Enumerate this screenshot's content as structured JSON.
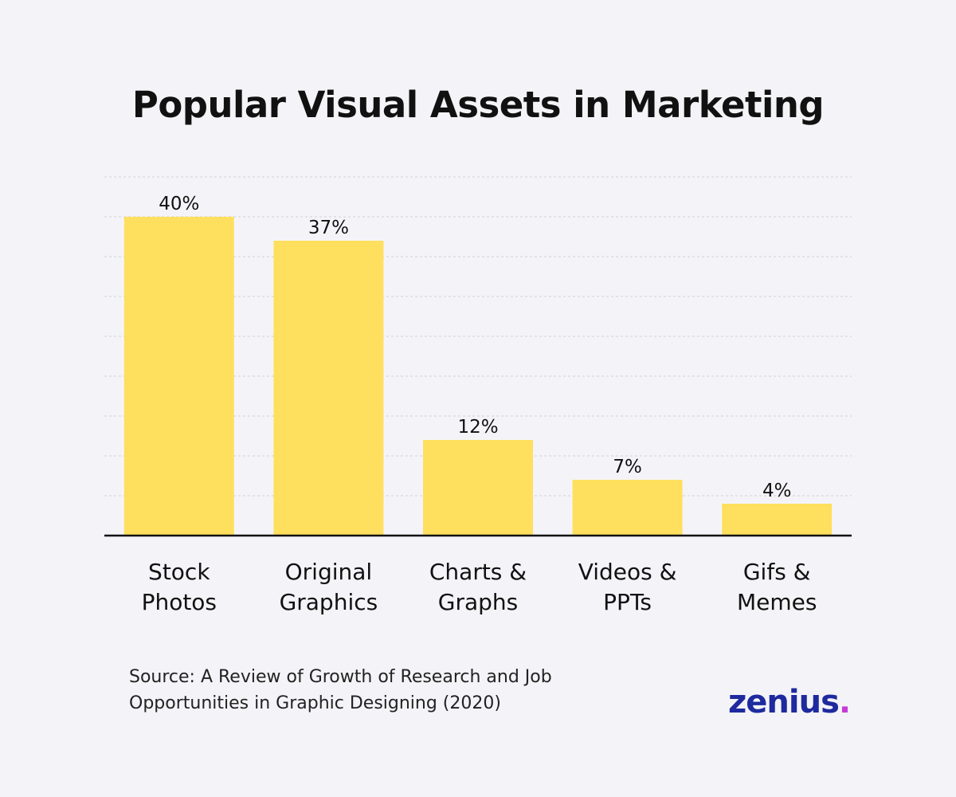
{
  "chart_data": {
    "type": "bar",
    "title": "Popular Visual Assets in Marketing",
    "categories": [
      [
        "Stock",
        "Photos"
      ],
      [
        "Original",
        "Graphics"
      ],
      [
        "Charts &",
        "Graphs"
      ],
      [
        "Videos &",
        "PPTs"
      ],
      [
        "Gifs &",
        "Memes"
      ]
    ],
    "values": [
      40,
      37,
      12,
      7,
      4
    ],
    "value_labels": [
      "40%",
      "37%",
      "12%",
      "7%",
      "4%"
    ],
    "ylim": [
      0,
      45
    ],
    "grid": true,
    "bar_color": "#ffdf5e",
    "legend": "none"
  },
  "source": {
    "line1": "Source: A Review of Growth of Research and Job",
    "line2": "Opportunities in Graphic Designing (2020)"
  },
  "logo": {
    "word": "zenius",
    "dot": ".",
    "word_color": "#1e2a9e",
    "dot_color": "#c53bd8"
  }
}
